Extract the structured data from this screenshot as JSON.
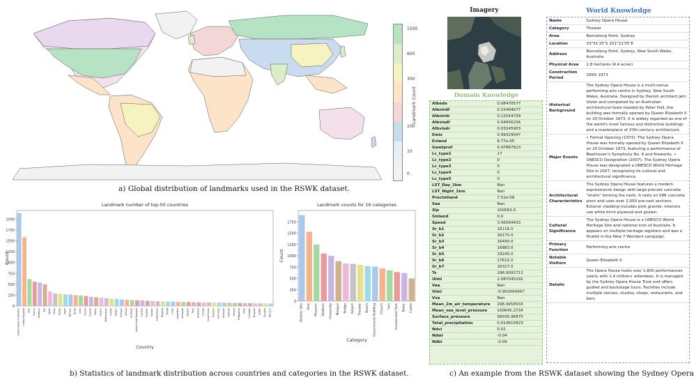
{
  "captions": {
    "a": "a) Global distribution of landmarks used in the RSWK dataset.",
    "b": "b) Statistics of landmark distribution across countries and categories in the RSWK dataset.",
    "c": "c) An example from the RSWK dataset showing the Sydney Opera House."
  },
  "map": {
    "colorbar_label": "Landmark Count",
    "colorbar_ticks": [
      "1500",
      "600",
      "300",
      "100",
      "10",
      "0"
    ],
    "colorbar_colors": [
      "#b5e3c3",
      "#dceec6",
      "#f7f3c0",
      "#fde3c8",
      "#f3d6d6",
      "#c9dcef",
      "#e8eef4",
      "#f2f2f2"
    ]
  },
  "chart_data": [
    {
      "type": "bar",
      "title": "Landmark number of top-50 countries",
      "xlabel": "Country",
      "ylabel": "Count",
      "ylim": [
        0,
        2200
      ],
      "yticks": [
        0,
        250,
        500,
        750,
        1000,
        1250,
        1500,
        1750,
        2000
      ],
      "categories": [
        "United States of America",
        "United Kingdom",
        "Italy",
        "France",
        "Germany",
        "Iran",
        "Spain",
        "China",
        "Russia",
        "Japan",
        "Norway",
        "Brazil",
        "India",
        "Poland",
        "Canada",
        "Turkey",
        "Greece",
        "Netherlands",
        "Austria",
        "Mexico",
        "Portugal",
        "Ireland",
        "Australia",
        "United Arab Emirates",
        "Czechia",
        "Hungary",
        "Sweden",
        "Switzerland",
        "Belgium",
        "Egypt",
        "Israel",
        "Argentina",
        "Denmark",
        "Ukraine",
        "Peru",
        "Romania",
        "Croatia",
        "South Korea",
        "Thailand",
        "Indonesia",
        "Malaysia",
        "Vietnam",
        "Finland",
        "Philippines",
        "Chile",
        "Colombia",
        "Bulgaria",
        "Serbia",
        "Slovakia",
        "Morocco"
      ],
      "values": [
        2140,
        1580,
        620,
        560,
        540,
        500,
        330,
        290,
        280,
        270,
        260,
        250,
        240,
        230,
        210,
        200,
        190,
        180,
        170,
        160,
        150,
        140,
        135,
        130,
        125,
        120,
        115,
        110,
        105,
        100,
        98,
        95,
        92,
        90,
        88,
        85,
        83,
        80,
        78,
        76,
        74,
        72,
        70,
        68,
        66,
        64,
        62,
        60,
        58,
        56
      ]
    },
    {
      "type": "bar",
      "title": "Landmark counts for 16 categories",
      "xlabel": "Category",
      "ylabel": "Count",
      "ylim": [
        0,
        2000
      ],
      "yticks": [
        0,
        250,
        500,
        750,
        1000,
        1250,
        1500,
        1750
      ],
      "categories": [
        "Historic Site",
        "Park",
        "Museum",
        "Stadium",
        "University",
        "Mosque",
        "Bridge",
        "Airport",
        "Theater",
        "Beach",
        "Government Building",
        "Church",
        "Fort",
        "Amusement Park",
        "Tower",
        "Castle"
      ],
      "values": [
        1900,
        1530,
        1250,
        1050,
        1000,
        880,
        830,
        820,
        800,
        770,
        760,
        720,
        680,
        640,
        620,
        500
      ]
    }
  ],
  "imagery": {
    "title": "Imagery"
  },
  "domain_knowledge": {
    "title": "Domain Knowledge",
    "rows": [
      {
        "k": "Albedo",
        "v": "0.08470577"
      },
      {
        "k": "Albnirdf",
        "v": "0.15494677"
      },
      {
        "k": "Albnirdr",
        "v": "0.12544709"
      },
      {
        "k": "Albvisdf",
        "v": "0.04656256"
      },
      {
        "k": "Albvisdr",
        "v": "0.03245903"
      },
      {
        "k": "Emis",
        "v": "0.99329047"
      },
      {
        "k": "Evland",
        "v": "6.77e-05"
      },
      {
        "k": "Gwetprof",
        "v": "0.47887823"
      },
      {
        "k": "Lc_type1",
        "v": "17"
      },
      {
        "k": "Lc_type2",
        "v": "0"
      },
      {
        "k": "Lc_type3",
        "v": "0"
      },
      {
        "k": "Lc_type4",
        "v": "0"
      },
      {
        "k": "Lc_type5",
        "v": "0"
      },
      {
        "k": "LST_Day_1km",
        "v": "Nan"
      },
      {
        "k": "LST_Night_1km",
        "v": "Nan"
      },
      {
        "k": "Prectotland",
        "v": "7.51e-08"
      },
      {
        "k": "Saa",
        "v": "Nan"
      },
      {
        "k": "Slp",
        "v": "100563.0"
      },
      {
        "k": "Smland",
        "v": "0.0"
      },
      {
        "k": "Speed",
        "v": "3.06594433"
      },
      {
        "k": "Sr_b1",
        "v": "16116.0"
      },
      {
        "k": "Sr_b2",
        "v": "16175.0"
      },
      {
        "k": "Sr_b3",
        "v": "16490.0"
      },
      {
        "k": "Sr_b4",
        "v": "16883.0"
      },
      {
        "k": "Sr_b5",
        "v": "19245.0"
      },
      {
        "k": "Sr_b6",
        "v": "17615.0"
      },
      {
        "k": "Sr_b7",
        "v": "16327.0"
      },
      {
        "k": "Ts",
        "v": "298.9092712"
      },
      {
        "k": "Ulml",
        "v": "2.087045292"
      },
      {
        "k": "Vaa",
        "v": "Nan"
      },
      {
        "k": "Vlml",
        "v": "-0.902604997"
      },
      {
        "k": "Vza",
        "v": "Nan"
      },
      {
        "k": "Mean_2m_air_temperature",
        "v": "298.4058533"
      },
      {
        "k": "Mean_sea_level_pressure",
        "v": "100645.2734"
      },
      {
        "k": "Surface_pressure",
        "v": "99936.96875"
      },
      {
        "k": "Total_precipitation",
        "v": "0.014615823"
      },
      {
        "k": "Ndvi",
        "v": "0.02"
      },
      {
        "k": "Ndwi",
        "v": "-0.04"
      },
      {
        "k": "Ndbi",
        "v": "-0.09"
      }
    ]
  },
  "world_knowledge": {
    "title": "World Knowledge",
    "rows": [
      {
        "k": "Name",
        "v": "Sydney Opera House"
      },
      {
        "k": "Category",
        "v": "Theater"
      },
      {
        "k": "Area",
        "v": "Bennelong Point, Sydney"
      },
      {
        "k": "Location",
        "v": "33°51′25″S 151°12′55″E"
      },
      {
        "k": "Address",
        "v": "Bennelong Point, Sydney, New South Wales, Australia"
      },
      {
        "k": "Physical Area",
        "v": "1.8 hectares (4.4 acres)"
      },
      {
        "k": "Construction Period",
        "v": "1959–1973"
      },
      {
        "k": "Historical Background",
        "v": "The Sydney Opera House is a multi-venue performing arts centre in Sydney, New South Wales, Australia. Designed by Danish architect Jørn Utzon and completed by an Australian architectural team headed by Peter Hall, the building was formally opened by Queen Elizabeth II on 20 October 1973. It is widely regarded as one of the world's most famous and distinctive buildings and a masterpiece of 20th-century architecture."
      },
      {
        "k": "Major Events",
        "v": "• Formal Opening (1973): The Sydney Opera House was formally opened by Queen Elizabeth II on 20 October 1973, featuring a performance of Beethoven's Symphony No. 9 and fireworks. • UNESCO Designation (2007): The Sydney Opera House was designated a UNESCO World Heritage Site in 2007, recognizing its cultural and architectural significance."
      },
      {
        "k": "Architectural Characteristics",
        "v": "The Sydney Opera House features a modern expressionist design with large precast concrete \"shells\" forming the roofs. It rests on 588 concrete piers and uses over 2,000 pre-cast sections. Exterior cladding includes pink granite; interiors use white birch plywood and glulam."
      },
      {
        "k": "Cultural Significance",
        "v": "The Sydney Opera House is a UNESCO World Heritage Site and national icon of Australia. It appears on multiple heritage registers and was a finalist in the New 7 Wonders campaign."
      },
      {
        "k": "Primary Function",
        "v": "Performing arts centre"
      },
      {
        "k": "Notable Visitors",
        "v": "Queen Elizabeth II"
      },
      {
        "k": "Details",
        "v": "The Opera House hosts over 1,800 performances yearly with 1.4 million+ attendees. It is managed by the Sydney Opera House Trust and offers guided and backstage tours. Facilities include multiple venues, studios, shops, restaurants, and bars."
      }
    ]
  }
}
